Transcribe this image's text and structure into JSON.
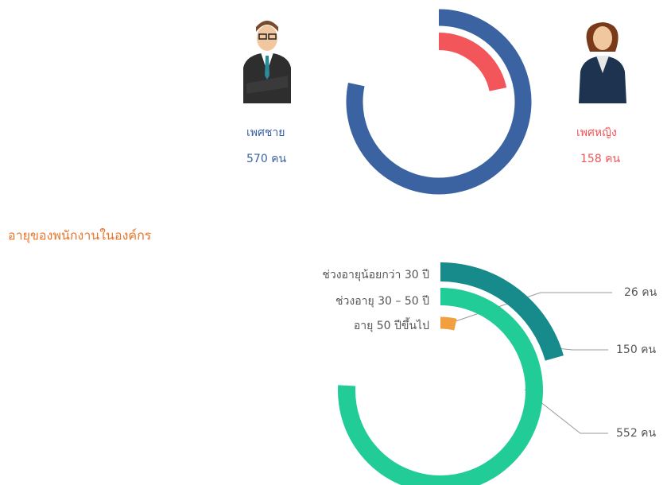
{
  "chart_data": [
    {
      "type": "radial-bar",
      "series": [
        {
          "name": "เพศชาย",
          "color": "#3b63a2",
          "values": [
            570
          ],
          "value_labels": [
            "570 คน"
          ]
        },
        {
          "name": "เพศหญิง",
          "color": "#f2555a",
          "values": [
            158
          ],
          "value_labels": [
            "158 คน"
          ]
        }
      ]
    },
    {
      "type": "radial-bar",
      "title": "อายุของพนักงานในองค์กร",
      "series": [
        {
          "name": "ช่วงอายุน้อยกว่า 30 ปี",
          "color": "#178a8c",
          "values": [
            150
          ],
          "value_labels": [
            "150 คน"
          ]
        },
        {
          "name": "ช่วงอายุ 30 – 50 ปี",
          "color": "#22cc97",
          "values": [
            552
          ],
          "value_labels": [
            "552 คน"
          ]
        },
        {
          "name": "อายุ 50 ปีขึ้นไป",
          "color": "#f2a03f",
          "values": [
            26
          ],
          "value_labels": [
            "26 คน"
          ]
        }
      ]
    }
  ]
}
